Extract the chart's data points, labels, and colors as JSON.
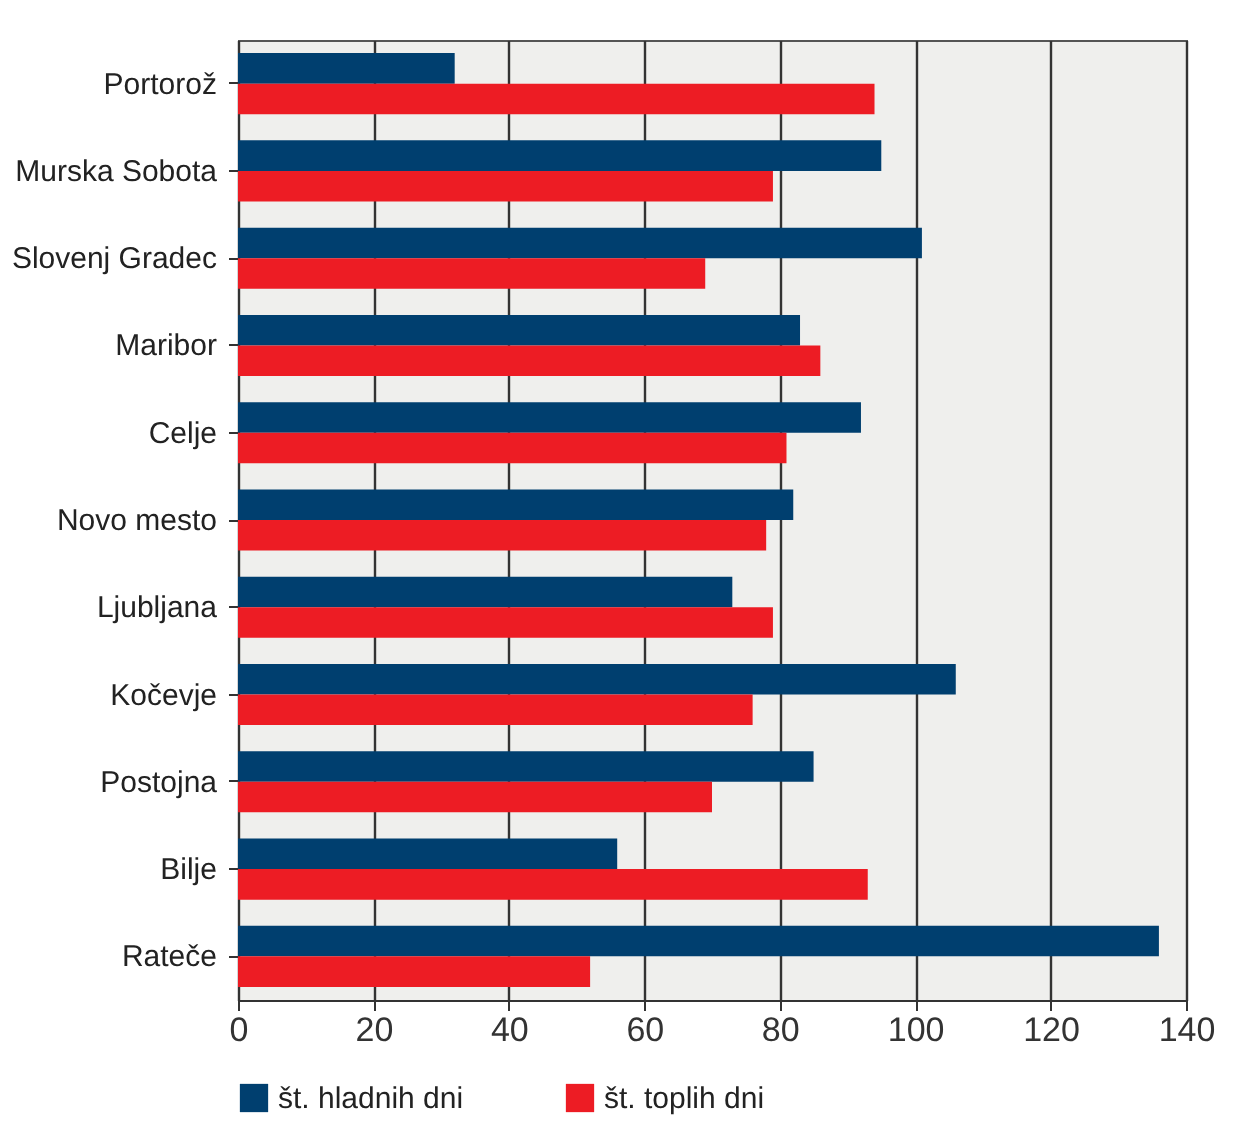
{
  "chart_data": {
    "type": "bar",
    "orientation": "horizontal",
    "categories": [
      "Portorož",
      "Murska Sobota",
      "Slovenj Gradec",
      "Maribor",
      "Celje",
      "Novo mesto",
      "Ljubljana",
      "Kočevje",
      "Postojna",
      "Bilje",
      "Rateče"
    ],
    "series": [
      {
        "name": "št. hladnih dni",
        "color": "#003f6f",
        "values": [
          32,
          95,
          101,
          83,
          92,
          82,
          73,
          106,
          85,
          56,
          136
        ]
      },
      {
        "name": "št. toplih dni",
        "color": "#ed1c24",
        "values": [
          94,
          79,
          69,
          86,
          81,
          78,
          79,
          76,
          70,
          93,
          52
        ]
      }
    ],
    "xlim": [
      0,
      140
    ],
    "xticks": [
      0,
      20,
      40,
      60,
      80,
      100,
      120,
      140
    ],
    "grid": "x",
    "legend": "bottom"
  }
}
